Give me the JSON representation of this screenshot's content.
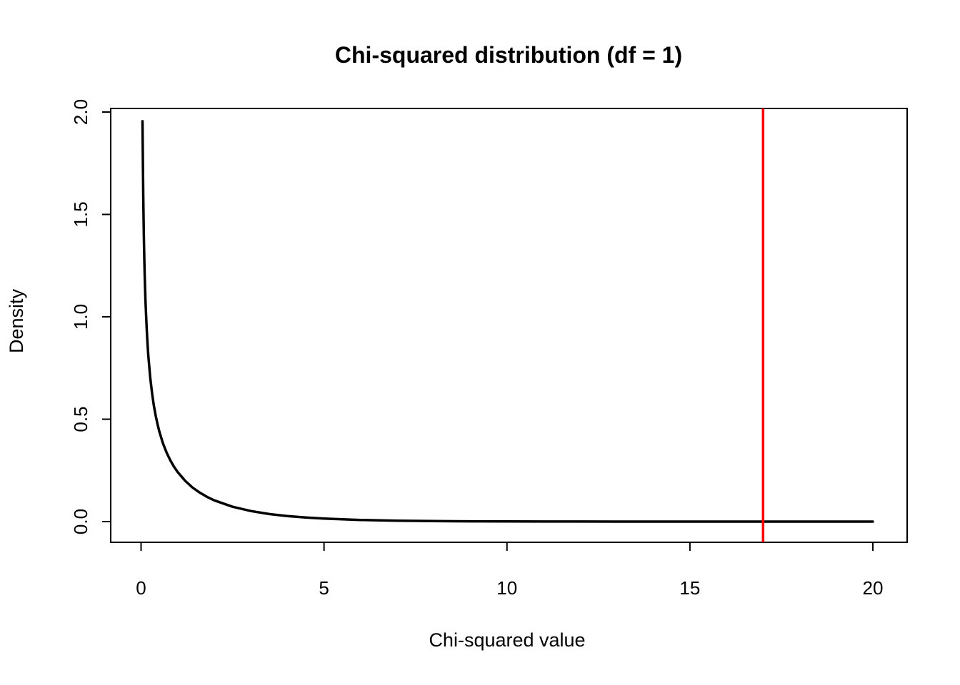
{
  "chart_data": {
    "type": "line",
    "title": "Chi-squared distribution (df = 1)",
    "xlabel": "Chi-squared value",
    "ylabel": "Density",
    "xlim": [
      0,
      20
    ],
    "ylim": [
      0,
      2.0
    ],
    "grid": false,
    "legend": false,
    "x_ticks": {
      "values": [
        0,
        5,
        10,
        15,
        20
      ],
      "labels": [
        "0",
        "5",
        "10",
        "15",
        "20"
      ]
    },
    "y_ticks": {
      "values": [
        0,
        0.5,
        1.0,
        1.5,
        2.0
      ],
      "labels": [
        "0.0",
        "0.5",
        "1.0",
        "1.5",
        "2.0"
      ]
    },
    "series": [
      {
        "name": "chi-squared density (df = 1)",
        "color": "#000000",
        "line_width": 2,
        "x": [
          0.04,
          0.05,
          0.06,
          0.07,
          0.08,
          0.09,
          0.1,
          0.12,
          0.14,
          0.16,
          0.18,
          0.2,
          0.25,
          0.3,
          0.35,
          0.4,
          0.45,
          0.5,
          0.6,
          0.7,
          0.8,
          0.9,
          1.0,
          1.2,
          1.4,
          1.6,
          1.8,
          2.0,
          2.5,
          3.0,
          3.5,
          4.0,
          4.5,
          5.0,
          6.0,
          7.0,
          8.0,
          9.0,
          10,
          11,
          12,
          13,
          14,
          15,
          16,
          17,
          18,
          19,
          20
        ],
        "y": [
          1.9552,
          1.7401,
          1.5805,
          1.456,
          1.3552,
          1.2713,
          1.2,
          1.0846,
          0.9941,
          0.9207,
          0.8594,
          0.8072,
          0.7041,
          0.6269,
          0.5661,
          0.5164,
          0.4749,
          0.4394,
          0.3815,
          0.336,
          0.299,
          0.2681,
          0.242,
          0.1999,
          0.1674,
          0.1417,
          0.1209,
          0.1038,
          0.0723,
          0.0514,
          0.0371,
          0.027,
          0.0198,
          0.0146,
          0.00811,
          0.00455,
          0.00258,
          0.00148,
          0.00085,
          0.00049,
          0.000285,
          0.000166,
          9.72e-05,
          5.7e-05,
          3.35e-05,
          1.97e-05,
          1.16e-05,
          6.85e-06,
          4.05e-06
        ]
      }
    ],
    "annotations": [
      {
        "type": "vline",
        "x": 17,
        "color": "#FF0000",
        "line_width": 2
      }
    ]
  },
  "figure": {
    "background": "#FFFFFF",
    "box_color": "#000000",
    "text_color": "#000000"
  }
}
